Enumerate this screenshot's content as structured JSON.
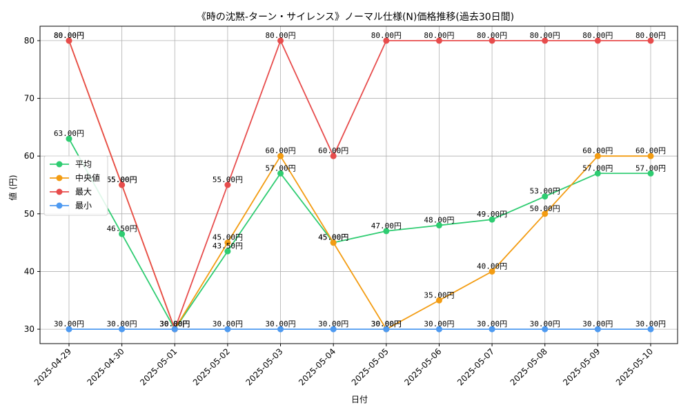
{
  "chart_data": {
    "type": "line",
    "title": "《時の沈黙-ターン・サイレンス》ノーマル仕様(N)価格推移(過去30日間)",
    "xlabel": "日付",
    "ylabel": "値 (円)",
    "x": [
      "2025-04-29",
      "2025-04-30",
      "2025-05-01",
      "2025-05-02",
      "2025-05-03",
      "2025-05-04",
      "2025-05-05",
      "2025-05-06",
      "2025-05-07",
      "2025-05-08",
      "2025-05-09",
      "2025-05-10"
    ],
    "yticks": [
      30,
      40,
      50,
      60,
      70,
      80
    ],
    "ylim": [
      27.5,
      82.5
    ],
    "grid": true,
    "legend_position": "center-left",
    "series": [
      {
        "name": "平均",
        "color": "#2ecc71",
        "values": [
          63.0,
          46.5,
          30.0,
          43.5,
          57.0,
          45.0,
          47.0,
          48.0,
          49.0,
          53.0,
          57.0,
          57.0
        ],
        "labels": [
          "63.00円",
          "46.50円",
          "30.00円",
          "43.50円",
          "57.00円",
          "45.00円",
          "47.00円",
          "48.00円",
          "49.00円",
          "53.00円",
          "57.00円",
          "57.00円"
        ]
      },
      {
        "name": "中央値",
        "color": "#f39c12",
        "values": [
          80.0,
          55.0,
          30.0,
          45.0,
          60.0,
          45.0,
          30.0,
          35.0,
          40.0,
          50.0,
          60.0,
          60.0
        ],
        "labels": [
          "80.00円",
          "55.00円",
          "30.00円",
          "45.00円",
          "60.00円",
          "45.00円",
          "30.00円",
          "35.00円",
          "40.00円",
          "50.00円",
          "60.00円",
          "60.00円"
        ]
      },
      {
        "name": "最大",
        "color": "#e74c4c",
        "values": [
          80.0,
          55.0,
          30.0,
          55.0,
          80.0,
          60.0,
          80.0,
          80.0,
          80.0,
          80.0,
          80.0,
          80.0
        ],
        "labels": [
          "80.00円",
          "55.00円",
          "30.00円",
          "55.00円",
          "80.00円",
          "60.00円",
          "80.00円",
          "80.00円",
          "80.00円",
          "80.00円",
          "80.00円",
          "80.00円"
        ]
      },
      {
        "name": "最小",
        "color": "#4e9af1",
        "values": [
          30.0,
          30.0,
          30.0,
          30.0,
          30.0,
          30.0,
          30.0,
          30.0,
          30.0,
          30.0,
          30.0,
          30.0
        ],
        "labels": [
          "30.00円",
          "30.00円",
          "30.00円",
          "30.00円",
          "30.00円",
          "30.00円",
          "30.00円",
          "30.00円",
          "30.00円",
          "30.00円",
          "30.00円",
          "30.00円"
        ]
      }
    ]
  }
}
